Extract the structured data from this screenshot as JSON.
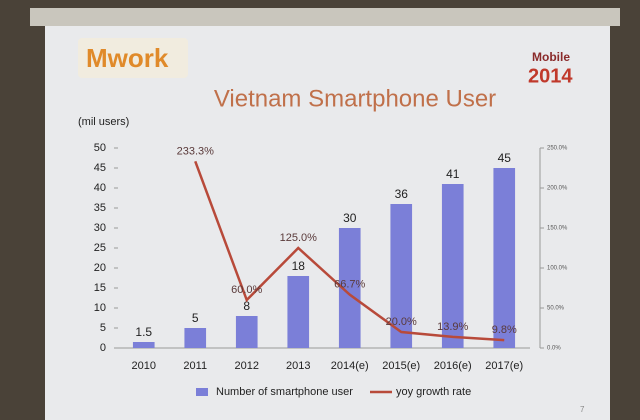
{
  "logo": "Mwork",
  "event": "Mobile",
  "event_year": "2014",
  "page_number": "7",
  "chart_data": {
    "type": "bar",
    "title": "Vietnam Smartphone User",
    "y_label": "(mil users)",
    "categories": [
      "2010",
      "2011",
      "2012",
      "2013",
      "2014(e)",
      "2015(e)",
      "2016(e)",
      "2017(e)"
    ],
    "series": [
      {
        "name": "Number of smartphone user",
        "color": "#7b7fd8",
        "values": [
          1.5,
          5,
          8,
          18,
          30,
          36,
          41,
          45
        ]
      },
      {
        "name": "yoy growth rate",
        "type": "line",
        "axis": "y2",
        "color": "#b84a3a",
        "values": [
          null,
          233.3,
          60.0,
          125.0,
          66.7,
          20.0,
          13.9,
          9.8
        ],
        "value_labels": [
          null,
          "233.3%",
          "60.0%",
          "125.0%",
          "66.7%",
          "20.0%",
          "13.9%",
          "9.8%"
        ]
      }
    ],
    "ylim": [
      0,
      50
    ],
    "yticks": [
      0,
      5,
      10,
      15,
      20,
      25,
      30,
      35,
      40,
      45,
      50
    ],
    "y2lim": [
      0,
      250
    ],
    "y2ticks": [
      {
        "value": 0,
        "label": "0.0%"
      },
      {
        "value": 50,
        "label": "50.0%"
      },
      {
        "value": 100,
        "label": "100.0%"
      },
      {
        "value": 150,
        "label": "150.0%"
      },
      {
        "value": 200,
        "label": "200.0%"
      },
      {
        "value": 250,
        "label": "250.0%"
      }
    ],
    "grid": false,
    "legend": "bottom"
  }
}
